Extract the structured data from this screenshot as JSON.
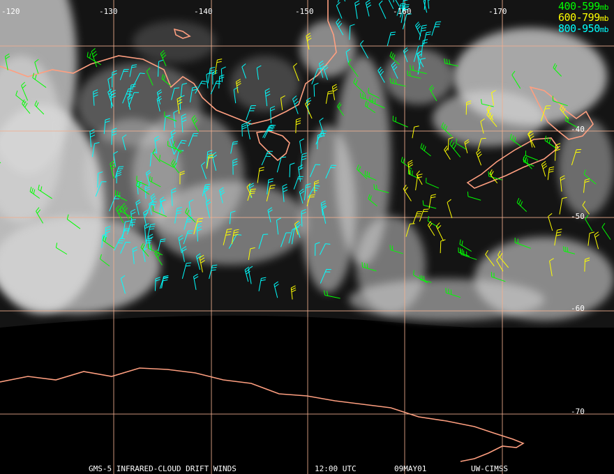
{
  "lon_labels": [
    "-120",
    "-130",
    "-140",
    "-150",
    "-160",
    "-170"
  ],
  "lat_labels": [
    "-40",
    "-50",
    "-60",
    "-70"
  ],
  "legend": [
    {
      "range": "400-599",
      "unit": "mb",
      "color": "#00ff00"
    },
    {
      "range": "600-799",
      "unit": "mb",
      "color": "#ffff00"
    },
    {
      "range": "800-950",
      "unit": "mb",
      "color": "#00ffff"
    }
  ],
  "footer": {
    "product": "GMS-5 INFRARED-CLOUD DRIFT WINDS",
    "time": "12:00 UTC",
    "date": "09MAY01",
    "source": "UW-CIMSS"
  },
  "colors": {
    "grid": "#f0b090",
    "coast": "#ff9f80",
    "cloud": "#d8d8d8"
  }
}
